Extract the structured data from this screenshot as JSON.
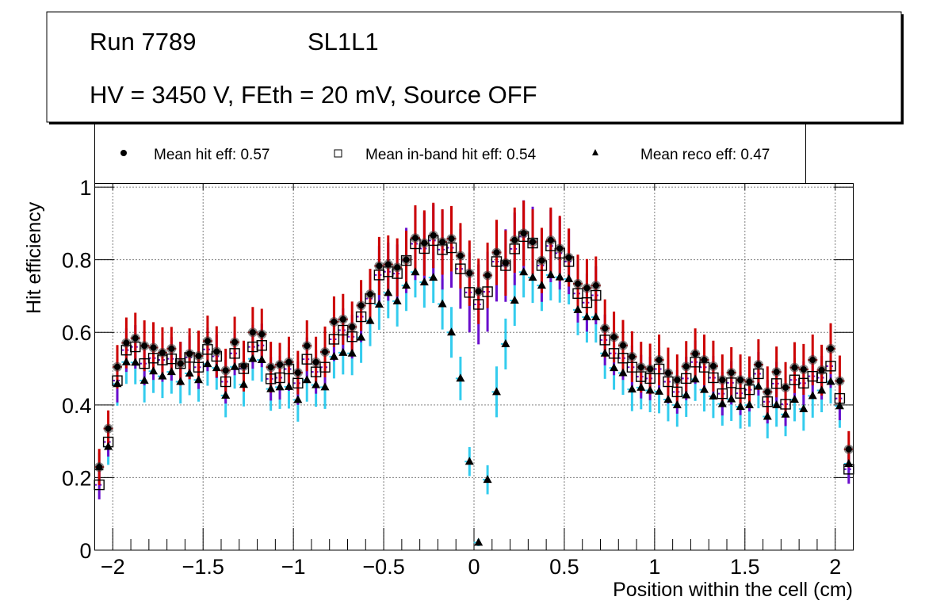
{
  "title_box": {
    "line1_left": "Run 7789",
    "line1_right": "SL1L1",
    "line2": "HV = 3450 V, FEth = 20 mV, Source OFF"
  },
  "legend": [
    {
      "marker": "filled-circle",
      "label": "Mean hit  eff: 0.57"
    },
    {
      "marker": "open-square",
      "label": "Mean in-band hit eff: 0.54"
    },
    {
      "marker": "filled-triangle",
      "label": "Mean reco eff: 0.47"
    }
  ],
  "chart_data": {
    "type": "scatter",
    "title": "",
    "xlabel": "Position within the cell (cm)",
    "ylabel": "Hit efficiency",
    "xlim": [
      -2.1,
      2.1
    ],
    "ylim": [
      0,
      1.01
    ],
    "grid": true,
    "legend_position": "top",
    "xticks": [
      -2,
      -1.5,
      -1,
      -0.5,
      0,
      0.5,
      1,
      1.5,
      2
    ],
    "xtick_labels": [
      "−2",
      "−1.5",
      "−1",
      "−0.5",
      "0",
      "0.5",
      "1",
      "1.5",
      "2"
    ],
    "yticks": [
      0,
      0.2,
      0.4,
      0.6,
      0.8,
      1
    ],
    "ytick_labels": [
      "0",
      "0.2",
      "0.4",
      "0.6",
      "0.8",
      "1"
    ],
    "x": [
      -2.075,
      -2.025,
      -1.975,
      -1.925,
      -1.875,
      -1.825,
      -1.775,
      -1.725,
      -1.675,
      -1.625,
      -1.575,
      -1.525,
      -1.475,
      -1.425,
      -1.375,
      -1.325,
      -1.275,
      -1.225,
      -1.175,
      -1.125,
      -1.075,
      -1.025,
      -0.975,
      -0.925,
      -0.875,
      -0.825,
      -0.775,
      -0.725,
      -0.675,
      -0.625,
      -0.575,
      -0.525,
      -0.475,
      -0.425,
      -0.375,
      -0.325,
      -0.275,
      -0.225,
      -0.175,
      -0.125,
      -0.075,
      -0.025,
      0.025,
      0.075,
      0.125,
      0.175,
      0.225,
      0.275,
      0.325,
      0.375,
      0.425,
      0.475,
      0.525,
      0.575,
      0.625,
      0.675,
      0.725,
      0.775,
      0.825,
      0.875,
      0.925,
      0.975,
      1.025,
      1.075,
      1.125,
      1.175,
      1.225,
      1.275,
      1.325,
      1.375,
      1.425,
      1.475,
      1.525,
      1.575,
      1.625,
      1.675,
      1.725,
      1.775,
      1.825,
      1.875,
      1.925,
      1.975,
      2.025,
      2.075
    ],
    "series": [
      {
        "name": "Mean hit  eff: 0.57",
        "marker": "filled-circle",
        "marker_color": "#000000",
        "error_color": "#cc0000",
        "values": [
          0.229,
          0.335,
          0.505,
          0.571,
          0.584,
          0.563,
          0.558,
          0.544,
          0.555,
          0.514,
          0.541,
          0.535,
          0.576,
          0.547,
          0.495,
          0.573,
          0.507,
          0.6,
          0.595,
          0.504,
          0.511,
          0.518,
          0.489,
          0.563,
          0.518,
          0.546,
          0.629,
          0.636,
          0.615,
          0.674,
          0.705,
          0.783,
          0.787,
          0.779,
          0.8,
          0.86,
          0.846,
          0.867,
          0.849,
          0.858,
          0.811,
          0.763,
          0.713,
          0.757,
          0.82,
          0.791,
          0.854,
          0.873,
          0.849,
          0.798,
          0.854,
          0.831,
          0.806,
          0.734,
          0.722,
          0.729,
          0.611,
          0.587,
          0.564,
          0.533,
          0.504,
          0.499,
          0.524,
          0.488,
          0.469,
          0.506,
          0.541,
          0.524,
          0.507,
          0.469,
          0.489,
          0.469,
          0.464,
          0.511,
          0.436,
          0.491,
          0.448,
          0.503,
          0.498,
          0.524,
          0.496,
          0.555,
          0.466,
          0.278
        ],
        "errors": [
          0.05,
          0.05,
          0.06,
          0.07,
          0.07,
          0.07,
          0.07,
          0.07,
          0.06,
          0.06,
          0.07,
          0.07,
          0.07,
          0.07,
          0.06,
          0.07,
          0.07,
          0.07,
          0.07,
          0.07,
          0.06,
          0.07,
          0.06,
          0.07,
          0.07,
          0.07,
          0.07,
          0.07,
          0.07,
          0.07,
          0.07,
          0.08,
          0.08,
          0.08,
          0.08,
          0.09,
          0.09,
          0.09,
          0.09,
          0.09,
          0.09,
          0.09,
          0.09,
          0.09,
          0.09,
          0.09,
          0.09,
          0.09,
          0.09,
          0.09,
          0.09,
          0.09,
          0.08,
          0.08,
          0.08,
          0.08,
          0.08,
          0.07,
          0.07,
          0.07,
          0.07,
          0.07,
          0.07,
          0.07,
          0.07,
          0.07,
          0.07,
          0.07,
          0.07,
          0.07,
          0.07,
          0.07,
          0.07,
          0.07,
          0.07,
          0.07,
          0.07,
          0.07,
          0.07,
          0.07,
          0.07,
          0.07,
          0.07,
          0.05
        ]
      },
      {
        "name": "Mean in-band hit eff: 0.54",
        "marker": "open-square",
        "marker_color": "#000000",
        "error_color": "#6a0dcc",
        "values": [
          0.18,
          0.298,
          0.467,
          0.551,
          0.56,
          0.514,
          0.529,
          0.524,
          0.527,
          0.514,
          0.531,
          0.504,
          0.553,
          0.534,
          0.464,
          0.542,
          0.5,
          0.56,
          0.564,
          0.472,
          0.475,
          0.499,
          0.46,
          0.526,
          0.491,
          0.504,
          0.581,
          0.606,
          0.588,
          0.643,
          0.693,
          0.758,
          0.767,
          0.762,
          0.798,
          0.844,
          0.831,
          0.853,
          0.828,
          0.833,
          0.775,
          0.71,
          0.677,
          0.712,
          0.795,
          0.784,
          0.83,
          0.864,
          0.846,
          0.784,
          0.838,
          0.818,
          0.795,
          0.707,
          0.682,
          0.702,
          0.579,
          0.542,
          0.529,
          0.504,
          0.478,
          0.473,
          0.499,
          0.464,
          0.436,
          0.473,
          0.518,
          0.504,
          0.475,
          0.431,
          0.461,
          0.432,
          0.442,
          0.486,
          0.409,
          0.459,
          0.402,
          0.469,
          0.46,
          0.479,
          0.475,
          0.507,
          0.418,
          0.223
        ],
        "errors": [
          0.04,
          0.04,
          0.06,
          0.06,
          0.06,
          0.06,
          0.06,
          0.06,
          0.06,
          0.06,
          0.06,
          0.06,
          0.06,
          0.06,
          0.06,
          0.06,
          0.06,
          0.06,
          0.06,
          0.06,
          0.06,
          0.06,
          0.06,
          0.06,
          0.06,
          0.06,
          0.06,
          0.06,
          0.06,
          0.07,
          0.07,
          0.08,
          0.08,
          0.08,
          0.09,
          0.1,
          0.1,
          0.1,
          0.11,
          0.11,
          0.11,
          0.11,
          0.11,
          0.11,
          0.11,
          0.1,
          0.1,
          0.1,
          0.1,
          0.1,
          0.1,
          0.1,
          0.09,
          0.08,
          0.08,
          0.08,
          0.07,
          0.06,
          0.06,
          0.06,
          0.06,
          0.06,
          0.06,
          0.06,
          0.06,
          0.06,
          0.06,
          0.06,
          0.06,
          0.06,
          0.06,
          0.06,
          0.06,
          0.06,
          0.06,
          0.06,
          0.06,
          0.06,
          0.06,
          0.06,
          0.06,
          0.06,
          0.06,
          0.04
        ]
      },
      {
        "name": "Mean reco eff: 0.47",
        "marker": "filled-triangle",
        "marker_color": "#000000",
        "error_color": "#33ccee",
        "values": [
          0.229,
          0.285,
          0.458,
          0.518,
          0.517,
          0.467,
          0.493,
          0.479,
          0.491,
          0.464,
          0.487,
          0.469,
          0.513,
          0.502,
          0.426,
          0.505,
          0.456,
          0.527,
          0.524,
          0.444,
          0.449,
          0.45,
          0.414,
          0.469,
          0.455,
          0.449,
          0.533,
          0.544,
          0.542,
          0.586,
          0.632,
          0.677,
          0.709,
          0.686,
          0.729,
          0.766,
          0.738,
          0.751,
          0.678,
          0.6,
          0.473,
          0.244,
          0.021,
          0.194,
          0.436,
          0.568,
          0.688,
          0.766,
          0.751,
          0.729,
          0.758,
          0.752,
          0.747,
          0.662,
          0.642,
          0.642,
          0.542,
          0.502,
          0.488,
          0.443,
          0.448,
          0.44,
          0.437,
          0.415,
          0.4,
          0.427,
          0.471,
          0.442,
          0.424,
          0.403,
          0.416,
          0.395,
          0.4,
          0.451,
          0.368,
          0.4,
          0.374,
          0.415,
          0.389,
          0.425,
          0.44,
          0.464,
          0.397,
          0.238
        ],
        "errors": [
          0.04,
          0.05,
          0.06,
          0.06,
          0.06,
          0.06,
          0.06,
          0.06,
          0.06,
          0.06,
          0.06,
          0.06,
          0.06,
          0.06,
          0.06,
          0.06,
          0.06,
          0.06,
          0.06,
          0.06,
          0.06,
          0.06,
          0.06,
          0.06,
          0.06,
          0.06,
          0.06,
          0.06,
          0.06,
          0.07,
          0.07,
          0.07,
          0.07,
          0.07,
          0.07,
          0.07,
          0.07,
          0.07,
          0.07,
          0.07,
          0.06,
          0.04,
          0.01,
          0.04,
          0.07,
          0.07,
          0.07,
          0.07,
          0.07,
          0.07,
          0.07,
          0.07,
          0.07,
          0.07,
          0.07,
          0.07,
          0.07,
          0.06,
          0.06,
          0.06,
          0.06,
          0.06,
          0.06,
          0.06,
          0.06,
          0.06,
          0.06,
          0.06,
          0.06,
          0.06,
          0.06,
          0.06,
          0.06,
          0.06,
          0.06,
          0.06,
          0.06,
          0.06,
          0.06,
          0.06,
          0.06,
          0.06,
          0.06,
          0.04
        ]
      }
    ]
  }
}
